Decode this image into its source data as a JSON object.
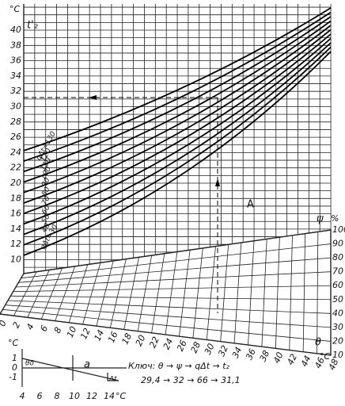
{
  "left_axis": {
    "unit": "°C",
    "label": "t'₂",
    "ticks": [
      "40",
      "38",
      "36",
      "34",
      "32",
      "30",
      "28",
      "26",
      "24",
      "22",
      "20",
      "18",
      "16",
      "14",
      "12",
      "10"
    ]
  },
  "curves": {
    "labels": [
      "qΔt=130",
      "120",
      "110",
      "100",
      "90",
      "80",
      "70",
      "60",
      "50",
      "40",
      "qΔt=30"
    ]
  },
  "right_axis": {
    "symbol": "ψ",
    "unit": "%",
    "ticks": [
      "100",
      "90",
      "80",
      "70",
      "60",
      "50",
      "40",
      "30",
      "20",
      "10"
    ]
  },
  "bottom_axis": {
    "symbol": "θ",
    "unit": "°C",
    "ticks": [
      "0",
      "2",
      "4",
      "6",
      "8",
      "10",
      "12",
      "14",
      "16",
      "18",
      "20",
      "22",
      "24",
      "26",
      "28",
      "30",
      "32",
      "34",
      "36",
      "38",
      "40",
      "42",
      "44",
      "46",
      "48"
    ]
  },
  "region_label": "A",
  "key": {
    "line1": "Ключ: θ → ψ → qΔt → t₂",
    "line2": "29,4 → 32 → 66 → 31,1"
  },
  "inset": {
    "y_unit": "°C",
    "y_ticks": [
      "1",
      "0",
      "-1"
    ],
    "x_ticks": [
      "4",
      "6",
      "8",
      "10",
      "12",
      "14"
    ],
    "x_unit": "°C",
    "labels": [
      "θδ",
      "a",
      "Δt"
    ]
  }
}
